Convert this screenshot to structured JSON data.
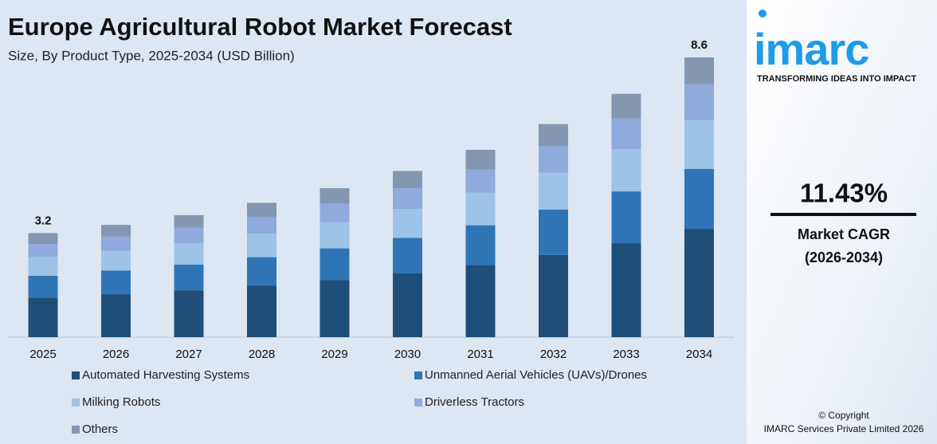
{
  "chart_data": {
    "type": "stacked_bar",
    "title": "Europe Agricultural Robot Market Forecast",
    "subtitle": "Size, By Product Type, 2025-2034 (USD Billion)",
    "categories": [
      "2025",
      "2026",
      "2027",
      "2028",
      "2029",
      "2030",
      "2031",
      "2032",
      "2033",
      "2034"
    ],
    "series": [
      {
        "name": "Automated Harvesting Systems",
        "color": "#1f4e79",
        "values": [
          1.21,
          1.32,
          1.44,
          1.59,
          1.76,
          1.97,
          2.22,
          2.53,
          2.89,
          3.33
        ]
      },
      {
        "name": "Unmanned Aerial Vehicles (UAVs)/Drones",
        "color": "#2e75b6",
        "values": [
          0.68,
          0.73,
          0.79,
          0.87,
          0.97,
          1.08,
          1.22,
          1.39,
          1.59,
          1.84
        ]
      },
      {
        "name": "Milking Robots",
        "color": "#9dc3e6",
        "values": [
          0.58,
          0.61,
          0.66,
          0.72,
          0.8,
          0.89,
          1.0,
          1.14,
          1.3,
          1.5
        ]
      },
      {
        "name": "Driverless Tractors",
        "color": "#8faadc",
        "values": [
          0.39,
          0.43,
          0.47,
          0.52,
          0.57,
          0.64,
          0.72,
          0.82,
          0.94,
          1.1
        ]
      },
      {
        "name": "Others",
        "color": "#8497b0",
        "values": [
          0.34,
          0.36,
          0.39,
          0.43,
          0.48,
          0.53,
          0.6,
          0.67,
          0.76,
          0.83
        ]
      }
    ],
    "totals": [
      3.2,
      null,
      null,
      null,
      null,
      null,
      null,
      null,
      null,
      8.6
    ]
  },
  "side_panel": {
    "brand": "imarc",
    "tagline": "TRANSFORMING IDEAS INTO IMPACT",
    "cagr": "11.43%",
    "cagr_label": "Market CAGR",
    "cagr_period": "(2026-2034)",
    "copyright": "© Copyright",
    "company": "IMARC Services Private Limited 2026"
  }
}
